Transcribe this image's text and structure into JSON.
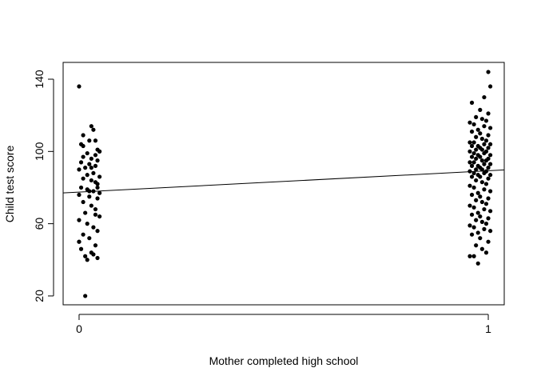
{
  "chart_data": {
    "type": "scatter",
    "x_label": "Mother completed high school",
    "y_label": "Child test score",
    "xlim": [
      -0.039,
      1.039
    ],
    "ylim": [
      15.1,
      149.3
    ],
    "xticks": [
      0,
      1
    ],
    "yticks": [
      20,
      60,
      100,
      140
    ],
    "color": "#000000",
    "line": {
      "intercept": 77.5,
      "slope": 11.8
    },
    "x": [
      0.0,
      0.015,
      0.005,
      0.01,
      0.03,
      0.035,
      0.04,
      0.025,
      0.045,
      0.05,
      0.02,
      0.04,
      0.01,
      0.03,
      0.045,
      0.005,
      0.025,
      0.04,
      0.015,
      0.0,
      0.035,
      0.02,
      0.05,
      0.01,
      0.03,
      0.04,
      0.045,
      0.005,
      0.02,
      0.035,
      0.05,
      0.0,
      0.025,
      0.045,
      0.01,
      0.03,
      0.04,
      0.015,
      0.05,
      0.0,
      0.02,
      0.035,
      0.045,
      0.01,
      0.025,
      0.0,
      0.04,
      0.005,
      0.03,
      0.015,
      0.045,
      0.02,
      0.035,
      0.05,
      0.01,
      0.03,
      0.045,
      0.025,
      0.04,
      0.0,
      1.0,
      1.005,
      0.975,
      0.99,
      0.96,
      0.98,
      1.0,
      0.97,
      0.985,
      0.995,
      0.955,
      0.965,
      0.99,
      1.005,
      0.975,
      0.96,
      0.98,
      1.0,
      0.97,
      0.985,
      0.995,
      0.955,
      0.965,
      0.99,
      1.005,
      0.975,
      0.96,
      0.98,
      1.0,
      0.97,
      0.985,
      0.995,
      0.955,
      0.965,
      0.99,
      1.005,
      0.975,
      0.96,
      0.98,
      1.0,
      0.97,
      0.985,
      0.995,
      0.955,
      0.965,
      0.99,
      1.005,
      0.975,
      0.96,
      0.98,
      1.0,
      0.97,
      0.985,
      0.995,
      0.955,
      0.965,
      0.99,
      1.005,
      0.975,
      0.96,
      0.98,
      1.0,
      0.97,
      0.985,
      0.995,
      0.955,
      0.965,
      0.99,
      1.005,
      0.975,
      0.96,
      0.98,
      1.0,
      0.97,
      0.985,
      0.995,
      0.955,
      0.965,
      0.99,
      1.005,
      0.975,
      0.96,
      0.98,
      1.0,
      0.97,
      0.985,
      0.995,
      0.955,
      0.965,
      0.99,
      1.005,
      0.975,
      0.96,
      0.98,
      1.0,
      0.97,
      0.985,
      0.995,
      0.955,
      0.965
    ],
    "values": [
      136,
      20,
      104,
      109,
      114,
      112,
      106,
      106,
      101,
      100,
      99,
      98,
      97,
      96,
      95,
      94,
      93,
      92,
      91,
      90,
      88,
      87,
      86,
      85,
      84,
      83,
      82,
      80,
      79,
      78,
      77,
      76,
      75,
      74,
      72,
      70,
      68,
      66,
      64,
      62,
      60,
      58,
      56,
      54,
      52,
      50,
      48,
      46,
      44,
      42,
      41,
      40,
      43,
      100,
      103,
      91,
      80,
      78,
      65,
      50,
      144,
      136,
      38,
      130,
      127,
      123,
      121,
      119,
      118,
      117,
      116,
      115,
      114,
      113,
      112,
      111,
      110,
      109,
      108,
      107,
      106,
      105,
      105,
      104,
      104,
      103,
      103,
      102,
      102,
      101,
      101,
      100,
      100,
      99,
      99,
      98,
      98,
      97,
      97,
      96,
      96,
      95,
      95,
      94,
      94,
      93,
      93,
      92,
      92,
      91,
      91,
      90,
      90,
      89,
      89,
      88,
      88,
      87,
      87,
      86,
      86,
      85,
      84,
      83,
      82,
      81,
      80,
      79,
      78,
      77,
      76,
      75,
      74,
      73,
      72,
      71,
      70,
      69,
      68,
      67,
      66,
      65,
      64,
      63,
      62,
      61,
      60,
      59,
      58,
      57,
      56,
      55,
      54,
      52,
      50,
      48,
      46,
      44,
      42,
      42
    ]
  }
}
